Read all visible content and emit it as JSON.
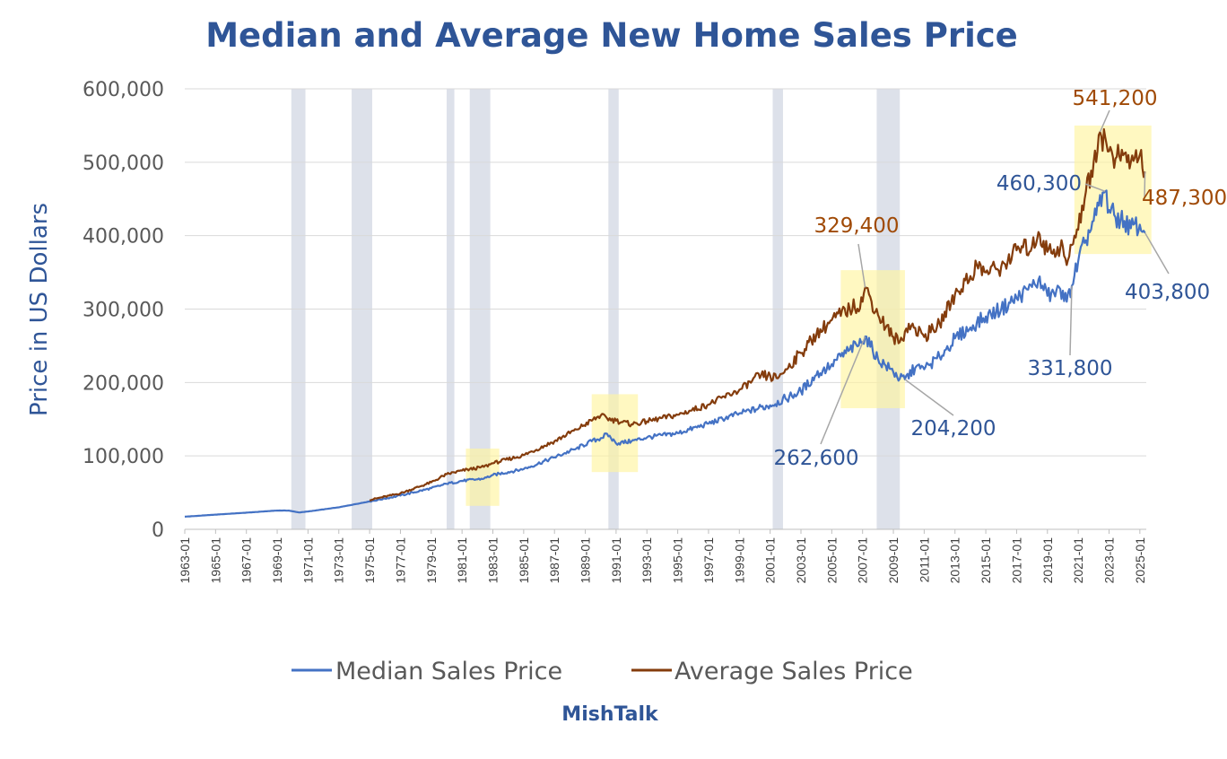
{
  "chart_data": {
    "type": "line",
    "title": "Median and Average New Home Sales Price",
    "ylabel": "Price in US Dollars",
    "xlabel": "",
    "credit": "MishTalk",
    "ylim": [
      0,
      600000
    ],
    "yticks": [
      "0",
      "100,000",
      "200,000",
      "300,000",
      "400,000",
      "500,000",
      "600,000"
    ],
    "ytick_values": [
      0,
      100000,
      200000,
      300000,
      400000,
      500000,
      600000
    ],
    "xlim": [
      "1963-01",
      "2025-06"
    ],
    "xticks": [
      "1963-01",
      "1965-01",
      "1967-01",
      "1969-01",
      "1971-01",
      "1973-01",
      "1975-01",
      "1977-01",
      "1979-01",
      "1981-01",
      "1983-01",
      "1985-01",
      "1987-01",
      "1989-01",
      "1991-01",
      "1993-01",
      "1995-01",
      "1997-01",
      "1999-01",
      "2001-01",
      "2003-01",
      "2005-01",
      "2007-01",
      "2009-01",
      "2011-01",
      "2013-01",
      "2015-01",
      "2017-01",
      "2019-01",
      "2021-01",
      "2023-01",
      "2025-01"
    ],
    "grid": "horizontal",
    "legend_position": "bottom",
    "colors": {
      "median": "#4472C4",
      "average": "#843C0C",
      "recession": "#DDE1EA",
      "highlight": "#FFF5A0",
      "label_median": "#2F5597",
      "label_average": "#A04A06",
      "leader": "#A6A6A6"
    },
    "recessions": [
      [
        "1969-12",
        "1970-11"
      ],
      [
        "1973-11",
        "1975-03"
      ],
      [
        "1980-01",
        "1980-07"
      ],
      [
        "1981-07",
        "1982-11"
      ],
      [
        "1990-07",
        "1991-03"
      ],
      [
        "2001-03",
        "2001-11"
      ],
      [
        "2007-12",
        "2009-06"
      ]
    ],
    "highlights": [
      {
        "x": [
          "1981-04",
          "1983-06"
        ],
        "y": [
          32000,
          110000
        ]
      },
      {
        "x": [
          "1989-06",
          "1992-06"
        ],
        "y": [
          78000,
          184000
        ]
      },
      {
        "x": [
          "2005-08",
          "2009-10"
        ],
        "y": [
          165000,
          353000
        ]
      },
      {
        "x": [
          "2020-10",
          "2025-10"
        ],
        "y": [
          375000,
          550000
        ]
      }
    ],
    "series": [
      {
        "name": "Median Sales Price",
        "color": "#4472C4",
        "points": [
          [
            "1963-01",
            17200
          ],
          [
            "1965-01",
            20000
          ],
          [
            "1967-01",
            22700
          ],
          [
            "1969-01",
            25600
          ],
          [
            "1969-10",
            25500
          ],
          [
            "1970-06",
            23000
          ],
          [
            "1971-01",
            24300
          ],
          [
            "1973-01",
            30000
          ],
          [
            "1975-01",
            38000
          ],
          [
            "1977-01",
            46000
          ],
          [
            "1979-01",
            56000
          ],
          [
            "1980-01",
            62000
          ],
          [
            "1981-01",
            66000
          ],
          [
            "1982-06",
            69000
          ],
          [
            "1983-01",
            74000
          ],
          [
            "1985-01",
            82000
          ],
          [
            "1987-01",
            98000
          ],
          [
            "1988-06",
            110000
          ],
          [
            "1989-06",
            120000
          ],
          [
            "1990-01",
            124000
          ],
          [
            "1990-06",
            130000
          ],
          [
            "1991-01",
            117000
          ],
          [
            "1992-01",
            120000
          ],
          [
            "1993-01",
            125000
          ],
          [
            "1995-01",
            131000
          ],
          [
            "1997-01",
            144000
          ],
          [
            "1999-01",
            158000
          ],
          [
            "2001-01",
            169000
          ],
          [
            "2002-01",
            178000
          ],
          [
            "2003-01",
            188000
          ],
          [
            "2004-01",
            210000
          ],
          [
            "2005-01",
            225000
          ],
          [
            "2006-03",
            245000
          ],
          [
            "2007-01",
            255000
          ],
          [
            "2007-03",
            262600
          ],
          [
            "2008-01",
            232000
          ],
          [
            "2009-01",
            214000
          ],
          [
            "2009-06",
            205000
          ],
          [
            "2009-10",
            204200
          ],
          [
            "2010-06",
            220000
          ],
          [
            "2011-01",
            218000
          ],
          [
            "2012-01",
            235000
          ],
          [
            "2013-01",
            260000
          ],
          [
            "2014-01",
            275000
          ],
          [
            "2015-01",
            290000
          ],
          [
            "2016-01",
            300000
          ],
          [
            "2017-01",
            315000
          ],
          [
            "2018-01",
            330000
          ],
          [
            "2018-06",
            340000
          ],
          [
            "2019-01",
            318000
          ],
          [
            "2020-01",
            325000
          ],
          [
            "2020-04",
            310000
          ],
          [
            "2020-08",
            331800
          ],
          [
            "2021-01",
            365000
          ],
          [
            "2021-06",
            390000
          ],
          [
            "2022-01",
            420000
          ],
          [
            "2022-10",
            460300
          ],
          [
            "2023-01",
            435000
          ],
          [
            "2023-06",
            425000
          ],
          [
            "2024-01",
            420000
          ],
          [
            "2024-06",
            410000
          ],
          [
            "2025-01",
            415000
          ],
          [
            "2025-05",
            403800
          ]
        ]
      },
      {
        "name": "Average Sales Price",
        "color": "#843C0C",
        "points": [
          [
            "1975-01",
            40000
          ],
          [
            "1977-01",
            49000
          ],
          [
            "1979-01",
            64000
          ],
          [
            "1980-01",
            75000
          ],
          [
            "1981-01",
            80000
          ],
          [
            "1982-06",
            85000
          ],
          [
            "1983-01",
            90000
          ],
          [
            "1985-01",
            101000
          ],
          [
            "1987-01",
            120000
          ],
          [
            "1988-06",
            136000
          ],
          [
            "1989-06",
            148000
          ],
          [
            "1990-01",
            155000
          ],
          [
            "1990-06",
            151000
          ],
          [
            "1991-01",
            148000
          ],
          [
            "1992-01",
            143000
          ],
          [
            "1993-01",
            147000
          ],
          [
            "1995-01",
            156000
          ],
          [
            "1997-01",
            170000
          ],
          [
            "1999-01",
            190000
          ],
          [
            "2000-06",
            210000
          ],
          [
            "2001-06",
            206000
          ],
          [
            "2002-01",
            218000
          ],
          [
            "2003-01",
            240000
          ],
          [
            "2004-01",
            265000
          ],
          [
            "2005-01",
            285000
          ],
          [
            "2006-03",
            300000
          ],
          [
            "2007-01",
            310000
          ],
          [
            "2007-03",
            329400
          ],
          [
            "2008-01",
            292000
          ],
          [
            "2009-01",
            262000
          ],
          [
            "2009-06",
            255000
          ],
          [
            "2010-01",
            280000
          ],
          [
            "2011-01",
            262000
          ],
          [
            "2012-01",
            280000
          ],
          [
            "2013-01",
            320000
          ],
          [
            "2014-01",
            345000
          ],
          [
            "2014-06",
            360000
          ],
          [
            "2015-01",
            350000
          ],
          [
            "2016-01",
            358000
          ],
          [
            "2017-01",
            380000
          ],
          [
            "2018-01",
            385000
          ],
          [
            "2018-06",
            405000
          ],
          [
            "2019-01",
            378000
          ],
          [
            "2020-01",
            385000
          ],
          [
            "2020-04",
            360000
          ],
          [
            "2020-10",
            400000
          ],
          [
            "2021-06",
            450000
          ],
          [
            "2022-01",
            500000
          ],
          [
            "2022-06",
            541200
          ],
          [
            "2023-01",
            515000
          ],
          [
            "2023-06",
            505000
          ],
          [
            "2024-01",
            512000
          ],
          [
            "2024-06",
            500000
          ],
          [
            "2025-01",
            510000
          ],
          [
            "2025-05",
            487300
          ]
        ]
      }
    ],
    "annotations": [
      {
        "text": "329,400",
        "series": "average",
        "point": [
          "2007-03",
          329400
        ]
      },
      {
        "text": "262,600",
        "series": "median",
        "point": [
          "2007-03",
          262600
        ]
      },
      {
        "text": "204,200",
        "series": "median",
        "point": [
          "2009-10",
          204200
        ]
      },
      {
        "text": "331,800",
        "series": "median",
        "point": [
          "2020-08",
          331800
        ]
      },
      {
        "text": "541,200",
        "series": "average",
        "point": [
          "2022-06",
          541200
        ]
      },
      {
        "text": "460,300",
        "series": "median",
        "point": [
          "2022-10",
          460300
        ]
      },
      {
        "text": "487,300",
        "series": "average",
        "point": [
          "2025-05",
          487300
        ]
      },
      {
        "text": "403,800",
        "series": "median",
        "point": [
          "2025-05",
          403800
        ]
      }
    ]
  }
}
